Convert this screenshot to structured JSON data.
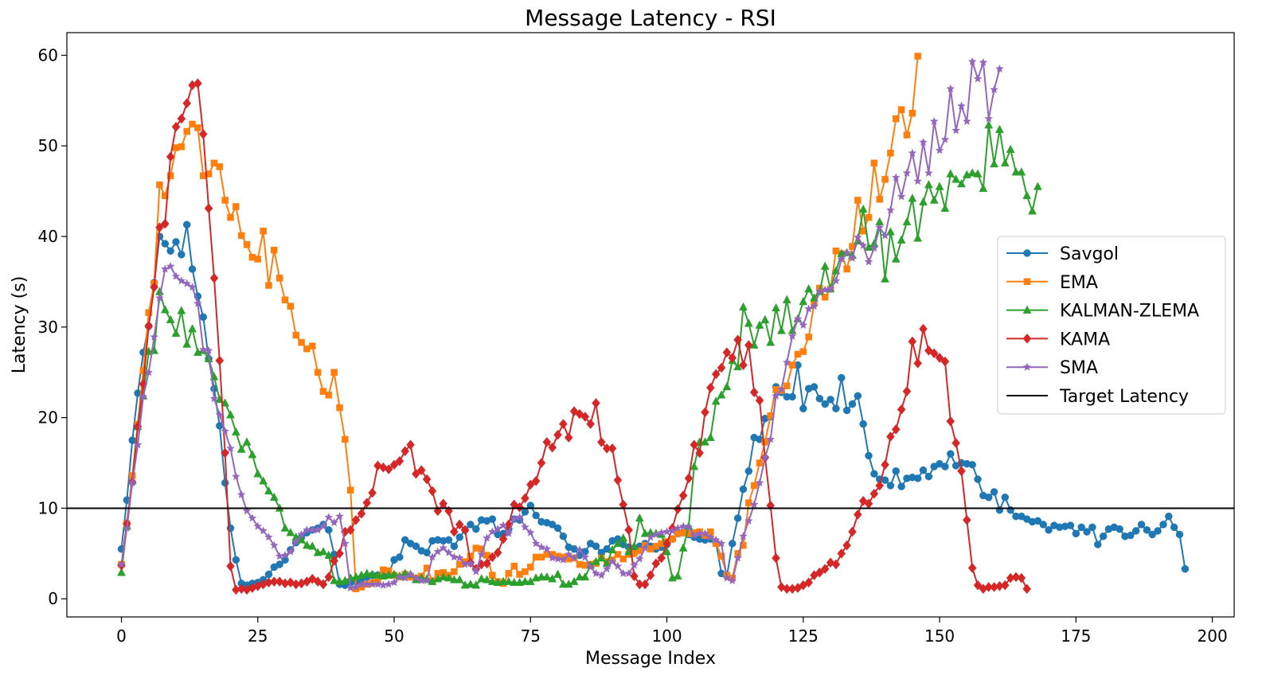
{
  "chart_data": {
    "type": "line",
    "title": "Message Latency - RSI",
    "xlabel": "Message Index",
    "ylabel": "Latency (s)",
    "xlim": [
      -10,
      204
    ],
    "ylim": [
      -2,
      62.5
    ],
    "xticks": [
      0,
      25,
      50,
      75,
      100,
      125,
      150,
      175,
      200
    ],
    "yticks": [
      0,
      10,
      20,
      30,
      40,
      50,
      60
    ],
    "grid": false,
    "legend_position": "center-right",
    "target_latency": {
      "name": "Target Latency",
      "value": 10,
      "color": "#000000"
    },
    "series": [
      {
        "name": "Savgol",
        "color": "#1f77b4",
        "marker": "circle",
        "x_start": 0,
        "values": [
          5.5,
          10.9,
          17.5,
          22.7,
          27.2,
          30.1,
          34.9,
          40.0,
          39.2,
          38.4,
          39.4,
          38.0,
          41.3,
          36.4,
          33.4,
          31.1,
          26.5,
          23.2,
          19.1,
          12.8,
          7.8,
          4.3,
          1.7,
          1.5,
          1.7,
          1.8,
          2.1,
          2.7,
          3.5,
          3.8,
          4.3,
          5.4,
          6.2,
          6.8,
          7.3,
          7.6,
          7.8,
          8.2,
          7.6,
          4.9,
          1.6,
          1.5,
          1.8,
          1.9,
          2.1,
          2.4,
          2.6,
          2.6,
          2.6,
          2.8,
          4.3,
          4.6,
          6.5,
          6.1,
          5.8,
          5.3,
          5.1,
          6.4,
          6.5,
          6.4,
          6.5,
          5.8,
          6.8,
          7.6,
          8.2,
          7.7,
          8.7,
          8.6,
          8.8,
          7.1,
          7.2,
          7.7,
          8.8,
          8.7,
          9.6,
          10.3,
          9.2,
          8.5,
          8.4,
          8.2,
          7.8,
          6.9,
          5.7,
          5.5,
          4.8,
          5.2,
          6.1,
          5.8,
          5.1,
          5.5,
          6.4,
          6.6,
          6.0,
          5.7,
          5.6,
          5.8,
          6.1,
          5.8,
          5.5,
          5.7,
          6.0,
          6.6,
          7.2,
          7.3,
          7.1,
          6.8,
          6.6,
          6.5,
          6.6,
          6.2,
          2.8,
          2.5,
          6.1,
          8.9,
          12.1,
          14.1,
          17.8,
          17.6,
          19.9,
          20.1,
          23.4,
          22.8,
          22.3,
          22.3,
          25.8,
          21.0,
          23.2,
          23.4,
          22.1,
          21.5,
          22.0,
          21.0,
          24.4,
          20.8,
          21.5,
          22.4,
          19.3,
          15.8,
          13.8,
          13.2,
          13.1,
          12.5,
          14.1,
          12.4,
          13.3,
          13.4,
          13.3,
          14.2,
          13.5,
          14.6,
          14.9,
          14.6,
          16.0,
          14.7,
          15.0,
          14.9,
          14.8,
          13.2,
          11.4,
          11.2,
          11.8,
          9.8,
          11.2,
          9.8,
          9.1,
          9.1,
          8.8,
          8.5,
          8.6,
          8.2,
          7.6,
          8.1,
          7.9,
          8.0,
          8.1,
          7.2,
          7.9,
          7.4,
          7.9,
          6.0,
          6.9,
          7.7,
          7.9,
          7.7,
          6.9,
          7.0,
          7.5,
          8.2,
          7.6,
          7.1,
          7.5,
          8.2,
          9.1,
          7.9,
          7.1,
          3.3
        ]
      },
      {
        "name": "EMA",
        "color": "#ff7f0e",
        "marker": "square",
        "x_start": 0,
        "values": [
          3.8,
          8.3,
          13.6,
          19.3,
          25.2,
          31.6,
          34.8,
          45.7,
          44.5,
          46.7,
          49.8,
          49.9,
          51.6,
          52.4,
          52.0,
          46.7,
          46.9,
          48.1,
          47.7,
          44.0,
          42.1,
          43.3,
          40.1,
          39.1,
          37.7,
          37.5,
          40.6,
          34.6,
          38.5,
          35.4,
          33.0,
          32.3,
          29.1,
          28.3,
          27.6,
          27.9,
          25.0,
          22.9,
          22.5,
          25.0,
          21.1,
          17.6,
          12.0,
          1.1,
          1.3,
          1.6,
          1.8,
          2.0,
          3.2,
          3.1,
          2.6,
          2.4,
          2.7,
          2.4,
          2.3,
          2.5,
          3.4,
          2.0,
          2.8,
          2.9,
          2.6,
          3.0,
          3.8,
          4.1,
          4.7,
          5.6,
          5.5,
          4.8,
          2.6,
          1.9,
          1.7,
          2.8,
          3.6,
          2.7,
          3.0,
          3.5,
          4.6,
          4.6,
          4.9,
          4.9,
          4.7,
          4.6,
          4.4,
          4.5,
          3.8,
          3.7,
          3.8,
          3.9,
          4.5,
          4.1,
          4.3,
          4.9,
          4.4,
          4.9,
          5.0,
          5.3,
          5.9,
          5.5,
          5.8,
          6.1,
          6.3,
          6.6,
          7.2,
          7.3,
          7.2,
          7.3,
          7.4,
          7.0,
          7.4,
          6.1,
          4.7,
          2.6,
          2.3,
          5.0,
          5.9,
          10.6,
          12.5,
          15.0,
          17.3,
          20.2,
          23.1,
          23.0,
          23.5,
          25.8,
          27.0,
          27.3,
          28.9,
          32.6,
          34.3,
          33.3,
          34.2,
          38.4,
          38.1,
          36.4,
          38.9,
          44.0,
          40.6,
          42.1,
          48.1,
          44.1,
          46.3,
          49.2,
          53.0,
          54.0,
          51.2,
          53.6,
          59.9
        ]
      },
      {
        "name": "KALMAN-ZLEMA",
        "color": "#2ca02c",
        "marker": "triangle",
        "x_start": 0,
        "values": [
          2.9,
          8.0,
          13.0,
          19.0,
          22.4,
          27.3,
          27.4,
          33.9,
          31.9,
          30.8,
          29.3,
          31.8,
          28.1,
          29.8,
          27.2,
          27.4,
          26.5,
          24.5,
          22.0,
          21.6,
          20.3,
          18.4,
          16.5,
          17.3,
          15.9,
          13.8,
          13.0,
          11.9,
          11.2,
          10.0,
          7.8,
          7.3,
          6.8,
          6.5,
          5.9,
          5.8,
          5.1,
          5.2,
          4.8,
          2.0,
          1.9,
          2.0,
          2.3,
          2.4,
          2.6,
          2.8,
          2.7,
          2.6,
          2.5,
          2.6,
          2.7,
          2.5,
          2.8,
          2.7,
          2.1,
          2.3,
          2.2,
          1.9,
          2.2,
          2.4,
          2.3,
          2.1,
          2.1,
          1.5,
          1.6,
          1.5,
          2.2,
          2.1,
          1.9,
          1.8,
          1.9,
          1.9,
          1.8,
          1.8,
          1.9,
          1.9,
          2.3,
          2.4,
          2.4,
          2.2,
          2.7,
          1.6,
          1.6,
          1.9,
          2.4,
          2.4,
          3.7,
          4.1,
          4.5,
          3.9,
          5.4,
          6.1,
          6.7,
          5.2,
          5.8,
          8.9,
          7.2,
          7.3,
          7.2,
          7.1,
          5.2,
          2.3,
          2.5,
          5.6,
          8.0,
          14.6,
          17.3,
          17.3,
          17.8,
          21.8,
          22.5,
          23.4,
          26.3,
          25.6,
          32.2,
          30.4,
          28.0,
          30.2,
          30.8,
          28.3,
          32.1,
          29.6,
          33.0,
          29.6,
          30.9,
          32.8,
          34.2,
          33.2,
          33.9,
          36.7,
          34.2,
          36.2,
          38.1,
          38.2,
          37.9,
          39.5,
          43.0,
          38.8,
          39.2,
          41.6,
          35.3,
          40.5,
          37.5,
          39.6,
          41.6,
          44.2,
          39.8,
          43.8,
          45.7,
          44.0,
          45.5,
          43.1,
          46.9,
          46.3,
          45.8,
          46.8,
          47.0,
          46.9,
          45.3,
          52.3,
          48.0,
          51.8,
          48.1,
          49.6,
          47.1,
          47.1,
          44.5,
          42.8,
          45.5
        ]
      },
      {
        "name": "KAMA",
        "color": "#d62728",
        "marker": "diamond",
        "x_start": 0,
        "values": [
          3.7,
          8.3,
          12.9,
          19.0,
          23.7,
          30.1,
          34.4,
          41.0,
          41.4,
          48.8,
          52.1,
          53.0,
          54.7,
          56.7,
          56.9,
          51.3,
          43.1,
          35.4,
          26.3,
          16.1,
          3.6,
          1.0,
          1.1,
          1.0,
          1.2,
          1.4,
          1.6,
          1.8,
          1.9,
          1.9,
          1.7,
          1.8,
          1.6,
          1.7,
          1.9,
          2.2,
          1.9,
          1.6,
          2.4,
          4.2,
          5.0,
          7.4,
          7.6,
          8.7,
          9.4,
          10.6,
          11.7,
          14.7,
          14.5,
          14.3,
          14.8,
          15.2,
          16.3,
          17.0,
          13.8,
          14.2,
          13.2,
          11.9,
          9.7,
          10.5,
          9.7,
          7.4,
          8.2,
          7.6,
          4.0,
          3.3,
          3.8,
          3.9,
          4.6,
          5.1,
          6.6,
          8.2,
          10.4,
          10.1,
          11.1,
          12.6,
          13.0,
          15.0,
          17.3,
          16.7,
          18.1,
          19.3,
          17.8,
          20.7,
          20.4,
          20.1,
          19.3,
          21.6,
          17.3,
          16.6,
          16.6,
          13.1,
          10.4,
          7.6,
          2.5,
          1.6,
          1.6,
          2.6,
          3.9,
          4.5,
          6.1,
          7.8,
          9.9,
          11.4,
          13.3,
          17.0,
          16.1,
          20.6,
          23.3,
          24.8,
          25.5,
          27.2,
          26.6,
          28.6,
          25.8,
          28.0,
          22.8,
          21.9,
          15.6,
          10.3,
          4.5,
          1.3,
          1.1,
          1.1,
          1.2,
          1.5,
          1.8,
          2.6,
          2.9,
          3.3,
          4.0,
          3.8,
          5.0,
          5.9,
          7.4,
          9.3,
          10.8,
          10.5,
          11.6,
          12.5,
          14.8,
          17.9,
          18.7,
          20.9,
          22.9,
          28.4,
          26.0,
          29.8,
          27.4,
          27.1,
          26.6,
          26.2,
          19.6,
          17.2,
          14.1,
          8.7,
          3.4,
          1.5,
          1.1,
          1.3,
          1.3,
          1.4,
          1.5,
          2.3,
          2.4,
          2.3,
          1.1
        ]
      },
      {
        "name": "SMA",
        "color": "#9467bd",
        "marker": "star",
        "x_start": 0,
        "values": [
          3.8,
          7.8,
          12.8,
          17.0,
          22.3,
          25.0,
          28.9,
          33.2,
          36.4,
          36.7,
          35.6,
          35.1,
          34.8,
          34.4,
          32.6,
          27.5,
          27.4,
          22.1,
          20.3,
          18.5,
          16.6,
          13.5,
          11.5,
          9.7,
          8.9,
          8.0,
          7.5,
          6.8,
          5.9,
          4.7,
          4.8,
          5.2,
          6.3,
          7.1,
          7.6,
          7.6,
          7.6,
          8.0,
          9.0,
          8.4,
          9.1,
          6.1,
          1.2,
          1.3,
          1.6,
          1.6,
          1.6,
          1.6,
          1.5,
          1.6,
          1.8,
          2.4,
          2.3,
          2.7,
          2.3,
          2.0,
          2.0,
          4.6,
          5.2,
          5.6,
          5.1,
          4.6,
          4.5,
          3.8,
          3.9,
          3.0,
          4.9,
          6.7,
          7.4,
          7.7,
          8.1,
          7.2,
          8.8,
          9.0,
          7.9,
          7.3,
          6.1,
          5.7,
          5.5,
          4.5,
          4.4,
          4.3,
          4.9,
          4.5,
          5.4,
          4.6,
          3.5,
          2.8,
          2.6,
          3.3,
          4.1,
          3.6,
          2.8,
          2.8,
          3.7,
          4.4,
          5.6,
          6.8,
          7.1,
          7.3,
          7.4,
          7.5,
          7.8,
          8.0,
          7.9,
          7.0,
          7.2,
          7.2,
          6.8,
          6.5,
          6.1,
          2.3,
          2.0,
          4.5,
          6.9,
          8.6,
          10.4,
          12.8,
          15.6,
          17.6,
          22.4,
          23.1,
          26.1,
          29.0,
          30.9,
          30.2,
          32.0,
          32.3,
          33.9,
          34.1,
          34.2,
          35.1,
          37.5,
          38.2,
          37.6,
          39.9,
          39.0,
          37.2,
          38.7,
          41.0,
          40.1,
          42.9,
          46.5,
          44.4,
          47.0,
          49.2,
          46.1,
          50.4,
          47.0,
          52.7,
          49.5,
          50.7,
          56.3,
          51.7,
          54.4,
          52.7,
          59.3,
          57.4,
          59.2,
          53.0,
          56.2,
          58.5
        ]
      }
    ]
  }
}
